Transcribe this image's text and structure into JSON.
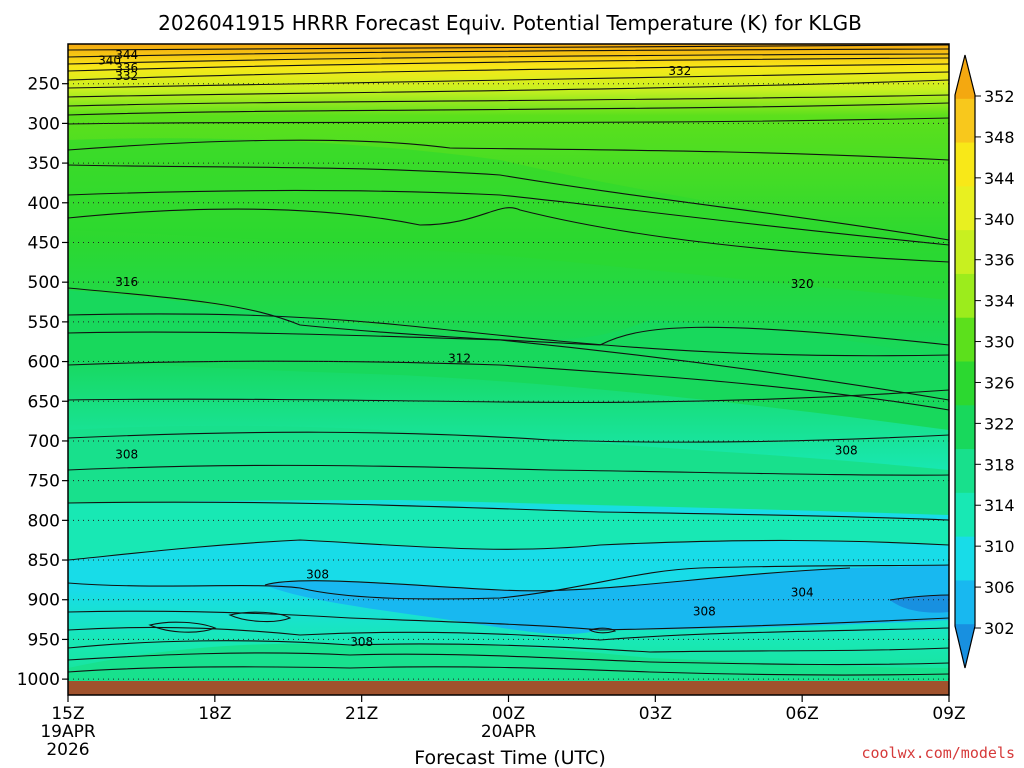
{
  "title": "2026041915 HRRR Forecast Equiv. Potential Temperature (K) for KLGB",
  "credit": "coolwx.com/models",
  "chart_data": {
    "type": "contour-filled time-height cross-section",
    "title": "2026041915 HRRR Forecast Equiv. Potential Temperature (K) for KLGB",
    "xlabel": "Forecast Time (UTC)",
    "ylabel": "",
    "x_ticks": [
      {
        "hours": 0,
        "label": "15Z",
        "sub1": "19APR",
        "sub2": "2026"
      },
      {
        "hours": 3,
        "label": "18Z",
        "sub1": "",
        "sub2": ""
      },
      {
        "hours": 6,
        "label": "21Z",
        "sub1": "",
        "sub2": ""
      },
      {
        "hours": 9,
        "label": "00Z",
        "sub1": "20APR",
        "sub2": ""
      },
      {
        "hours": 12,
        "label": "03Z",
        "sub1": "",
        "sub2": ""
      },
      {
        "hours": 15,
        "label": "06Z",
        "sub1": "",
        "sub2": ""
      },
      {
        "hours": 18,
        "label": "09Z",
        "sub1": "",
        "sub2": ""
      }
    ],
    "xlim_hours": [
      0,
      18
    ],
    "y_ticks_hpa": [
      250,
      300,
      350,
      400,
      450,
      500,
      550,
      600,
      650,
      700,
      750,
      800,
      850,
      900,
      950,
      1000
    ],
    "ylim_hpa": [
      1020,
      200
    ],
    "surface_hpa": 1010,
    "colorbar": {
      "labels": [
        "352",
        "348",
        "344",
        "340",
        "336",
        "334",
        "330",
        "326",
        "322",
        "318",
        "314",
        "310",
        "306",
        "302"
      ],
      "colors": [
        "#f4a810",
        "#f8c81c",
        "#f8e818",
        "#e8f020",
        "#c8f020",
        "#9cec1c",
        "#5ce01c",
        "#2cd830",
        "#18d85c",
        "#18e08c",
        "#18e8b4",
        "#18dce8",
        "#18b8f0",
        "#1890e0"
      ]
    },
    "contour_labels": [
      {
        "text": "344",
        "hours": 1.2,
        "hpa": 214
      },
      {
        "text": "340",
        "hours": 0.85,
        "hpa": 221
      },
      {
        "text": "336",
        "hours": 1.2,
        "hpa": 230
      },
      {
        "text": "332",
        "hours": 1.2,
        "hpa": 240
      },
      {
        "text": "332",
        "hours": 12.5,
        "hpa": 234
      },
      {
        "text": "316",
        "hours": 1.2,
        "hpa": 500
      },
      {
        "text": "320",
        "hours": 15.0,
        "hpa": 502
      },
      {
        "text": "312",
        "hours": 8.0,
        "hpa": 596
      },
      {
        "text": "308",
        "hours": 1.2,
        "hpa": 717
      },
      {
        "text": "308",
        "hours": 15.9,
        "hpa": 712
      },
      {
        "text": "308",
        "hours": 5.1,
        "hpa": 868
      },
      {
        "text": "308",
        "hours": 6.0,
        "hpa": 953
      },
      {
        "text": "308",
        "hours": 13.0,
        "hpa": 915
      },
      {
        "text": "304",
        "hours": 15.0,
        "hpa": 891
      }
    ]
  }
}
